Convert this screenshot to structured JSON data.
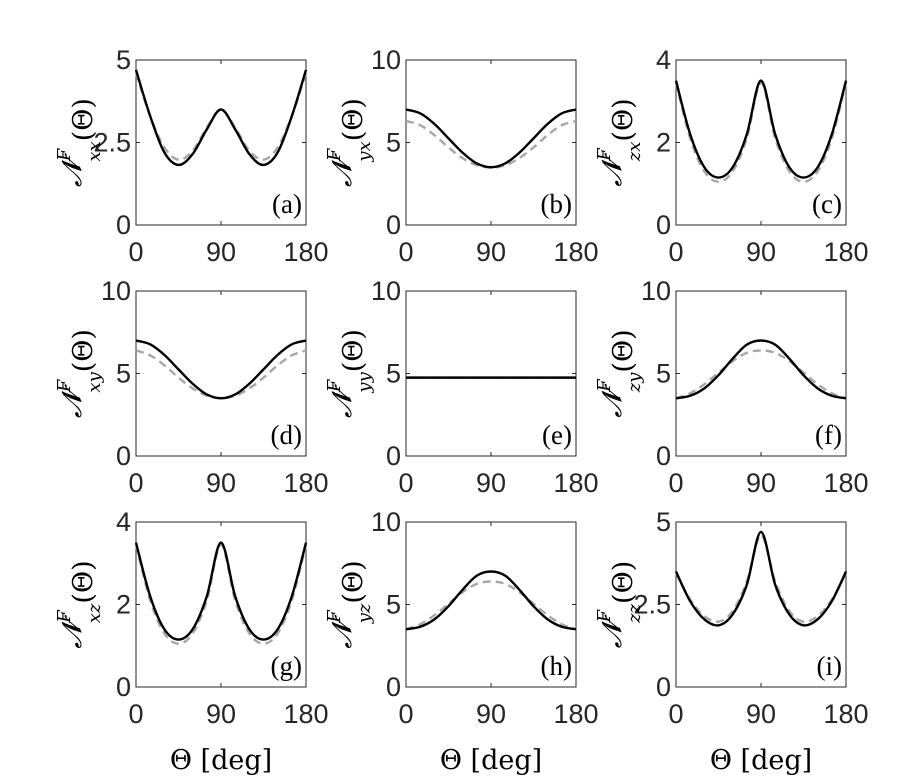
{
  "colors": {
    "exact": "#000000",
    "approx": "#a6a6a6",
    "axis": "#262626"
  },
  "chart_data": [
    {
      "type": "line",
      "panel_label": "(a)",
      "ylabel": {
        "base": "𝓝",
        "sup": "F",
        "sub": "xx",
        "arg": "(Θ)"
      },
      "xlabel": "",
      "xticks": [
        "0",
        "90",
        "180"
      ],
      "yticks": [
        "0",
        "2.5",
        "5"
      ],
      "xlim": [
        0,
        180
      ],
      "ylim": [
        0,
        5
      ],
      "x": [
        0,
        15,
        30,
        45,
        60,
        75,
        90,
        105,
        120,
        135,
        150,
        165,
        180
      ],
      "series": [
        {
          "values": [
            4.7,
            3.3,
            2.2,
            1.82,
            2.15,
            2.9,
            3.5,
            2.9,
            2.15,
            1.82,
            2.2,
            3.3,
            4.7
          ]
        },
        {
          "values": [
            4.6,
            3.3,
            2.35,
            1.98,
            2.25,
            2.95,
            3.5,
            2.95,
            2.25,
            1.98,
            2.35,
            3.3,
            4.6
          ]
        }
      ]
    },
    {
      "type": "line",
      "panel_label": "(b)",
      "ylabel": {
        "base": "𝓝",
        "sup": "F",
        "sub": "yx",
        "arg": "(Θ)"
      },
      "xlabel": "",
      "xticks": [
        "0",
        "90",
        "180"
      ],
      "yticks": [
        "0",
        "5",
        "10"
      ],
      "xlim": [
        0,
        180
      ],
      "ylim": [
        0,
        10
      ],
      "x": [
        0,
        15,
        30,
        45,
        60,
        75,
        90,
        105,
        120,
        135,
        150,
        165,
        180
      ],
      "series": [
        {
          "values": [
            7.0,
            6.77,
            6.13,
            5.25,
            4.38,
            3.73,
            3.5,
            3.73,
            4.38,
            5.25,
            6.13,
            6.77,
            7.0
          ]
        },
        {
          "values": [
            6.3,
            6.05,
            5.45,
            4.7,
            4.05,
            3.62,
            3.48,
            3.62,
            4.05,
            4.7,
            5.45,
            6.05,
            6.3
          ]
        }
      ]
    },
    {
      "type": "line",
      "panel_label": "(c)",
      "ylabel": {
        "base": "𝓝",
        "sup": "F",
        "sub": "zx",
        "arg": "(Θ)"
      },
      "xlabel": "",
      "xticks": [
        "0",
        "90",
        "180"
      ],
      "yticks": [
        "0",
        "2",
        "4"
      ],
      "xlim": [
        0,
        180
      ],
      "ylim": [
        0,
        4
      ],
      "x": [
        0,
        15,
        30,
        45,
        60,
        75,
        90,
        105,
        120,
        135,
        150,
        165,
        180
      ],
      "series": [
        {
          "values": [
            3.5,
            2.2,
            1.4,
            1.15,
            1.4,
            2.2,
            3.5,
            2.2,
            1.4,
            1.15,
            1.4,
            2.2,
            3.5
          ]
        },
        {
          "values": [
            3.45,
            2.1,
            1.3,
            1.05,
            1.3,
            2.1,
            3.45,
            2.1,
            1.3,
            1.05,
            1.3,
            2.1,
            3.45
          ]
        }
      ]
    },
    {
      "type": "line",
      "panel_label": "(d)",
      "ylabel": {
        "base": "𝓝",
        "sup": "F",
        "sub": "xy",
        "arg": "(Θ)"
      },
      "xlabel": "",
      "xticks": [
        "0",
        "90",
        "180"
      ],
      "yticks": [
        "0",
        "5",
        "10"
      ],
      "xlim": [
        0,
        180
      ],
      "ylim": [
        0,
        10
      ],
      "x": [
        0,
        15,
        30,
        45,
        60,
        75,
        90,
        105,
        120,
        135,
        150,
        165,
        180
      ],
      "series": [
        {
          "values": [
            7.0,
            6.77,
            6.13,
            5.25,
            4.38,
            3.73,
            3.5,
            3.73,
            4.38,
            5.25,
            6.13,
            6.77,
            7.0
          ]
        },
        {
          "values": [
            6.4,
            6.1,
            5.5,
            4.75,
            4.1,
            3.65,
            3.5,
            3.65,
            4.1,
            4.75,
            5.5,
            6.1,
            6.4
          ]
        }
      ]
    },
    {
      "type": "line",
      "panel_label": "(e)",
      "ylabel": {
        "base": "𝓝",
        "sup": "F",
        "sub": "yy",
        "arg": "(Θ)"
      },
      "xlabel": "",
      "xticks": [
        "0",
        "90",
        "180"
      ],
      "yticks": [
        "0",
        "5",
        "10"
      ],
      "xlim": [
        0,
        180
      ],
      "ylim": [
        0,
        10
      ],
      "x": [
        0,
        180
      ],
      "series": [
        {
          "values": [
            4.75,
            4.75
          ]
        },
        {
          "values": [
            4.75,
            4.75
          ]
        }
      ]
    },
    {
      "type": "line",
      "panel_label": "(f)",
      "ylabel": {
        "base": "𝓝",
        "sup": "F",
        "sub": "zy",
        "arg": "(Θ)"
      },
      "xlabel": "",
      "xticks": [
        "0",
        "90",
        "180"
      ],
      "yticks": [
        "0",
        "5",
        "10"
      ],
      "xlim": [
        0,
        180
      ],
      "ylim": [
        0,
        10
      ],
      "x": [
        0,
        15,
        30,
        45,
        60,
        75,
        90,
        105,
        120,
        135,
        150,
        165,
        180
      ],
      "series": [
        {
          "values": [
            3.5,
            3.65,
            4.1,
            4.9,
            5.9,
            6.75,
            7.0,
            6.75,
            5.9,
            4.9,
            4.1,
            3.65,
            3.5
          ]
        },
        {
          "values": [
            3.5,
            3.8,
            4.35,
            5.05,
            5.75,
            6.25,
            6.4,
            6.25,
            5.75,
            5.05,
            4.35,
            3.8,
            3.5
          ]
        }
      ]
    },
    {
      "type": "line",
      "panel_label": "(g)",
      "ylabel": {
        "base": "𝓝",
        "sup": "F",
        "sub": "xz",
        "arg": "(Θ)"
      },
      "xlabel": "Θ [deg]",
      "xticks": [
        "0",
        "90",
        "180"
      ],
      "yticks": [
        "0",
        "2",
        "4"
      ],
      "xlim": [
        0,
        180
      ],
      "ylim": [
        0,
        4
      ],
      "x": [
        0,
        15,
        30,
        45,
        60,
        75,
        90,
        105,
        120,
        135,
        150,
        165,
        180
      ],
      "series": [
        {
          "values": [
            3.5,
            2.2,
            1.4,
            1.15,
            1.4,
            2.2,
            3.5,
            2.2,
            1.4,
            1.15,
            1.4,
            2.2,
            3.5
          ]
        },
        {
          "values": [
            3.45,
            2.1,
            1.3,
            1.05,
            1.3,
            2.1,
            3.45,
            2.1,
            1.3,
            1.05,
            1.3,
            2.1,
            3.45
          ]
        }
      ]
    },
    {
      "type": "line",
      "panel_label": "(h)",
      "ylabel": {
        "base": "𝓝",
        "sup": "F",
        "sub": "yz",
        "arg": "(Θ)"
      },
      "xlabel": "Θ [deg]",
      "xticks": [
        "0",
        "90",
        "180"
      ],
      "yticks": [
        "0",
        "5",
        "10"
      ],
      "xlim": [
        0,
        180
      ],
      "ylim": [
        0,
        10
      ],
      "x": [
        0,
        15,
        30,
        45,
        60,
        75,
        90,
        105,
        120,
        135,
        150,
        165,
        180
      ],
      "series": [
        {
          "values": [
            3.5,
            3.65,
            4.1,
            4.9,
            5.9,
            6.75,
            7.0,
            6.75,
            5.9,
            4.9,
            4.1,
            3.65,
            3.5
          ]
        },
        {
          "values": [
            3.5,
            3.8,
            4.35,
            5.05,
            5.75,
            6.25,
            6.4,
            6.25,
            5.75,
            5.05,
            4.35,
            3.8,
            3.5
          ]
        }
      ]
    },
    {
      "type": "line",
      "panel_label": "(i)",
      "ylabel": {
        "base": "𝓝",
        "sup": "F",
        "sub": "zz",
        "arg": "(Θ)"
      },
      "xlabel": "Θ [deg]",
      "xticks": [
        "0",
        "90",
        "180"
      ],
      "yticks": [
        "0",
        "2.5",
        "5"
      ],
      "xlim": [
        0,
        180
      ],
      "ylim": [
        0,
        5
      ],
      "x": [
        0,
        15,
        30,
        45,
        60,
        75,
        90,
        105,
        120,
        135,
        150,
        165,
        180
      ],
      "series": [
        {
          "values": [
            3.5,
            2.6,
            2.05,
            1.87,
            2.2,
            3.1,
            4.7,
            3.1,
            2.2,
            1.87,
            2.05,
            2.6,
            3.5
          ]
        },
        {
          "values": [
            3.45,
            2.65,
            2.15,
            1.98,
            2.3,
            3.2,
            4.6,
            3.2,
            2.3,
            1.98,
            2.15,
            2.65,
            3.45
          ]
        }
      ]
    }
  ]
}
